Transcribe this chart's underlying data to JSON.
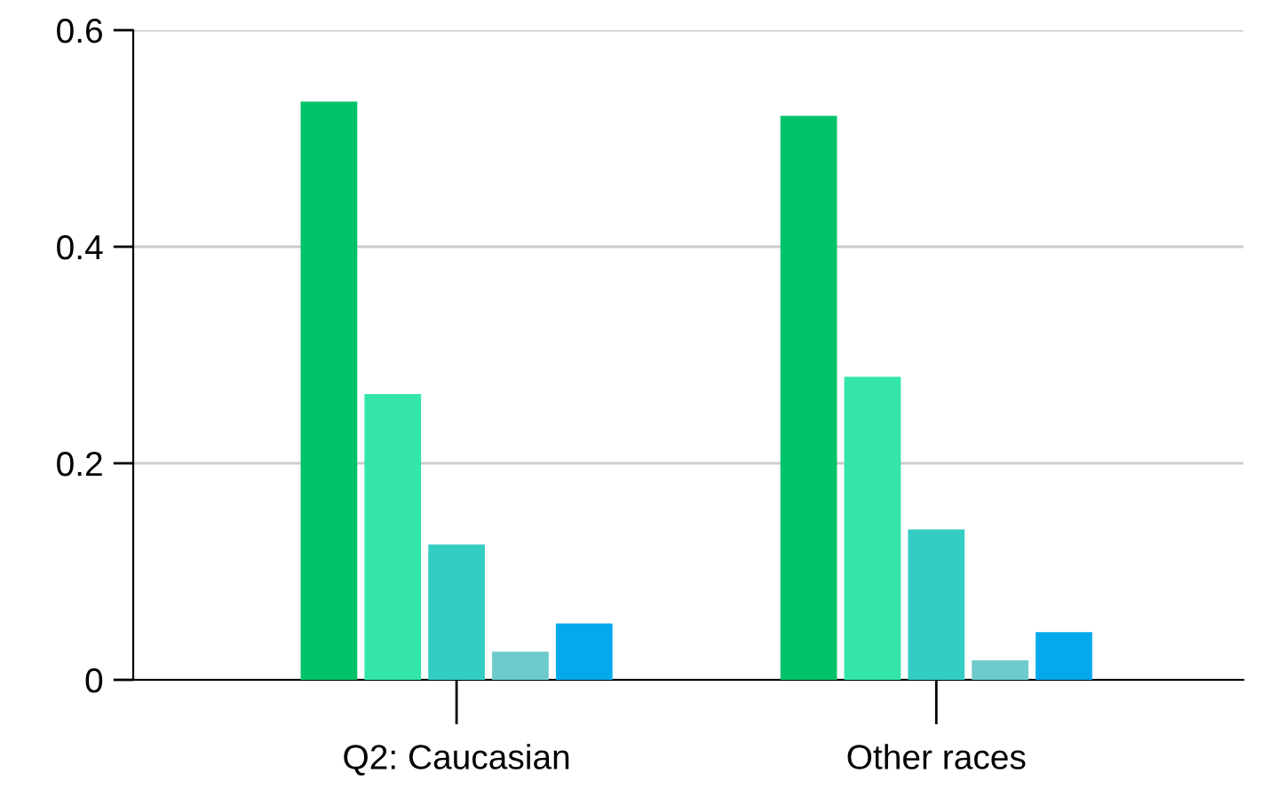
{
  "chart_data": {
    "type": "bar",
    "categories": [
      "Q2: Caucasian",
      "Other races"
    ],
    "series": [
      {
        "color": "#00c26b",
        "values": [
          0.534,
          0.521
        ]
      },
      {
        "color": "#33e5aa",
        "values": [
          0.264,
          0.28
        ]
      },
      {
        "color": "#33cdc4",
        "values": [
          0.125,
          0.139
        ]
      },
      {
        "color": "#6ecbcb",
        "values": [
          0.026,
          0.018
        ]
      },
      {
        "color": "#04a9eb",
        "values": [
          0.052,
          0.044
        ]
      }
    ],
    "ylim": [
      0,
      0.6
    ],
    "yticks": [
      0,
      0.2,
      0.4,
      0.6
    ],
    "grid": "y",
    "legend": false
  }
}
